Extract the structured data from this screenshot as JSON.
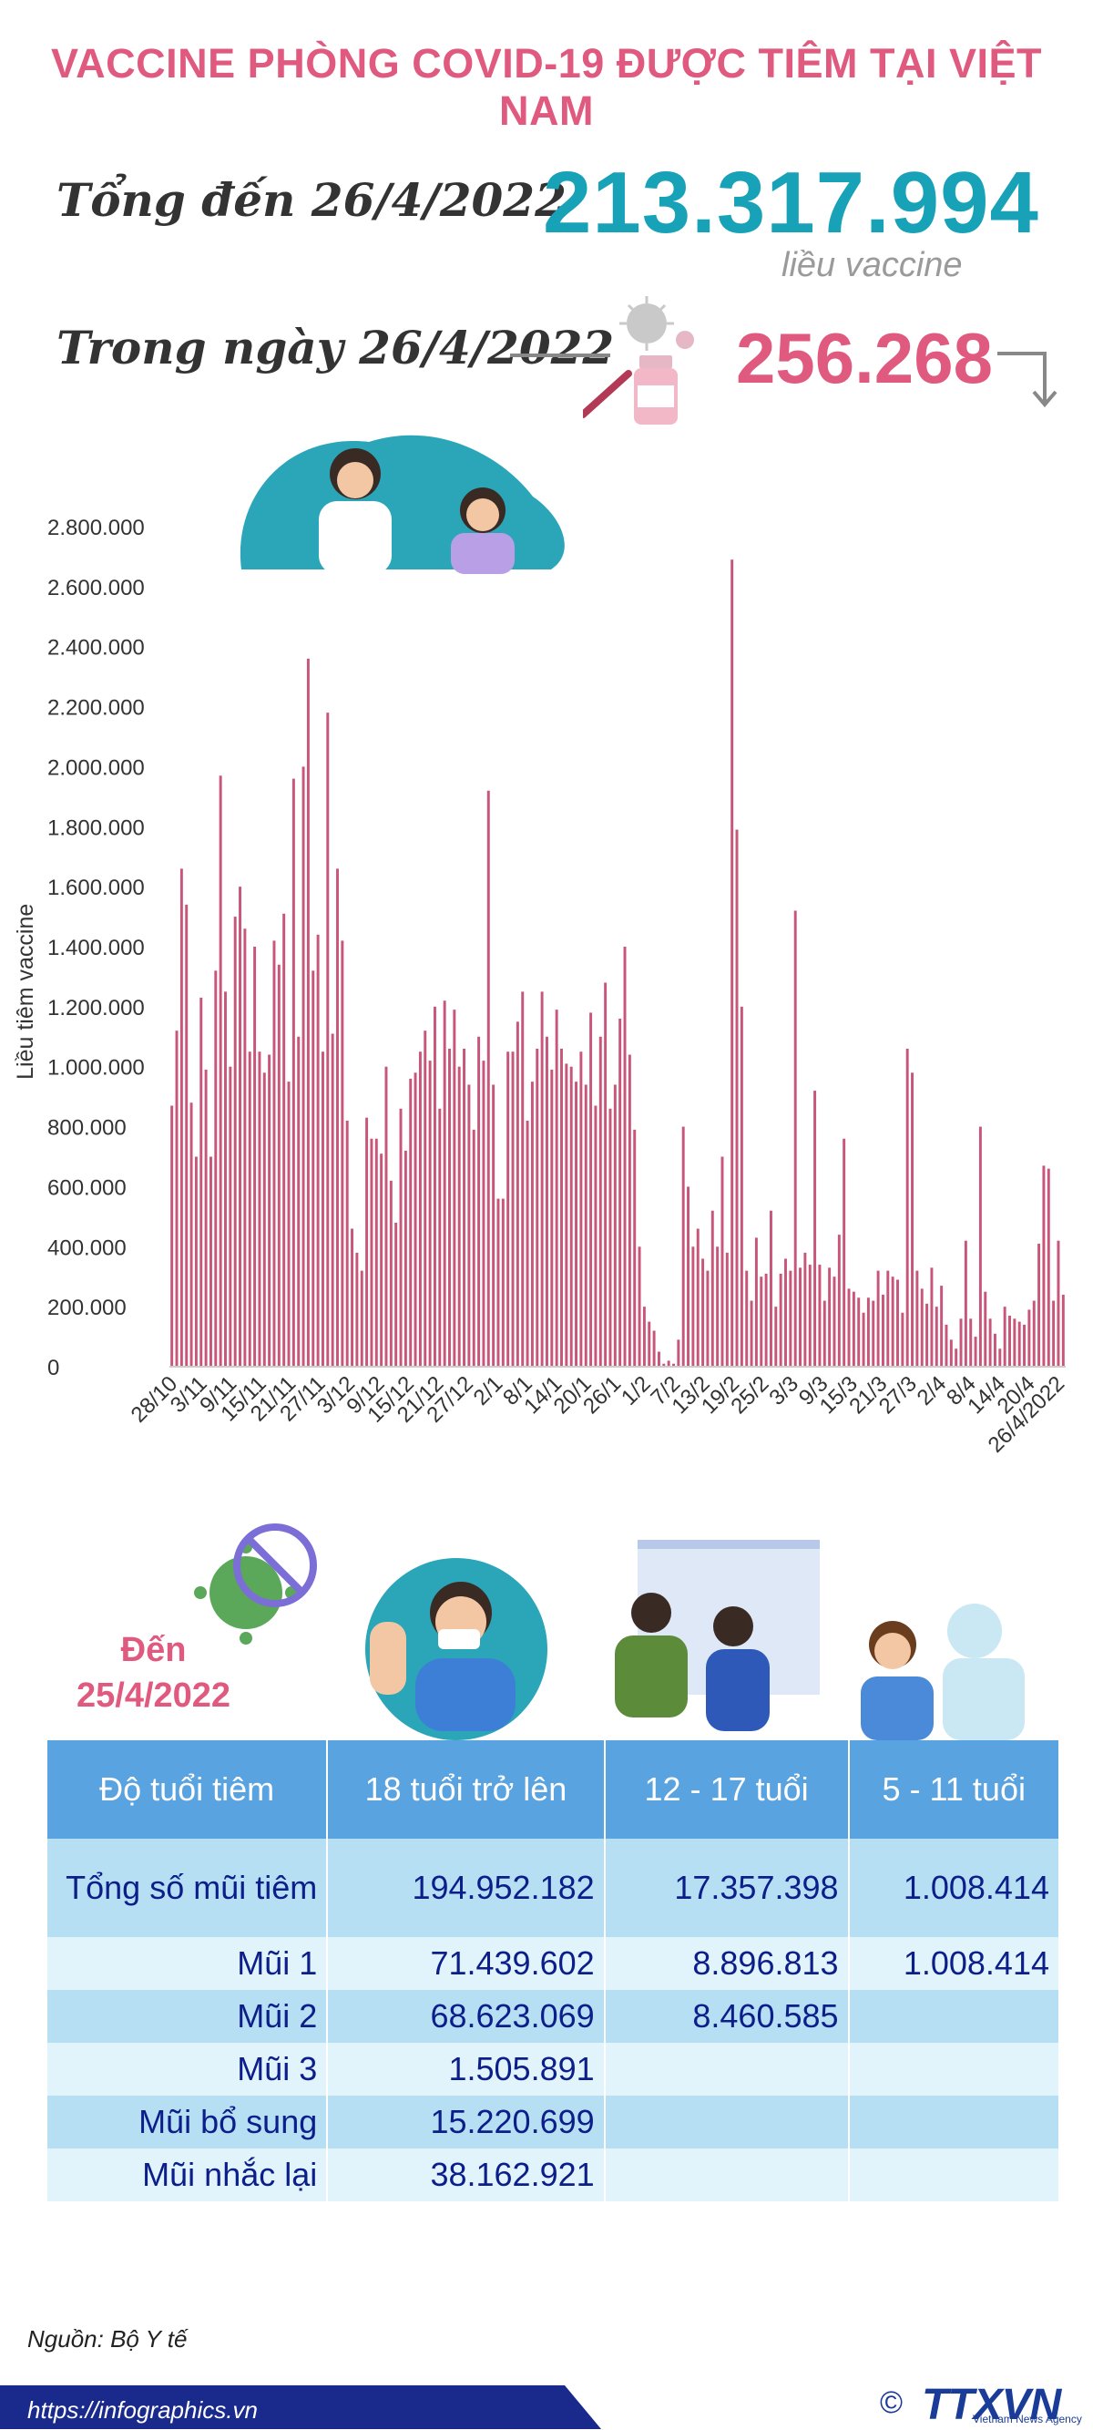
{
  "title": "VACCINE PHÒNG COVID-19 ĐƯỢC TIÊM TẠI VIỆT NAM",
  "summary": {
    "total_label": "Tổng đến 26/4/2022",
    "total_value": "213.317.994",
    "total_unit": "liều vaccine",
    "daily_label": "Trong ngày 26/4/2022",
    "daily_value": "256.268"
  },
  "chart_data": {
    "type": "bar",
    "ylabel": "Liều tiêm vaccine",
    "ylim": [
      0,
      2800000
    ],
    "yticks": [
      0,
      200000,
      400000,
      600000,
      800000,
      1000000,
      1200000,
      1400000,
      1600000,
      1800000,
      2000000,
      2200000,
      2400000,
      2600000,
      2800000
    ],
    "ytick_labels": [
      "0",
      "200.000",
      "400.000",
      "600.000",
      "800.000",
      "1.000.000",
      "1.200.000",
      "1.400.000",
      "1.600.000",
      "1.800.000",
      "2.000.000",
      "2.200.000",
      "2.400.000",
      "2.600.000",
      "2.800.000"
    ],
    "x_tick_labels": [
      "28/10",
      "3/11",
      "9/11",
      "15/11",
      "21/11",
      "27/11",
      "3/12",
      "9/12",
      "15/12",
      "21/12",
      "27/12",
      "2/1",
      "8/1",
      "14/1",
      "20/1",
      "26/1",
      "1/2",
      "7/2",
      "13/2",
      "19/2",
      "25/2",
      "3/3",
      "9/3",
      "15/3",
      "21/3",
      "27/3",
      "2/4",
      "8/4",
      "14/4",
      "20/4",
      "26/4/2022"
    ],
    "bar_color": "#c8557a",
    "values": [
      870000,
      1120000,
      1660000,
      1540000,
      880000,
      700000,
      1230000,
      990000,
      700000,
      1320000,
      1970000,
      1250000,
      1000000,
      1500000,
      1600000,
      1460000,
      1050000,
      1400000,
      1050000,
      980000,
      1040000,
      1420000,
      1340000,
      1510000,
      950000,
      1960000,
      1100000,
      2000000,
      2360000,
      1320000,
      1440000,
      1050000,
      2180000,
      1110000,
      1660000,
      1420000,
      820000,
      460000,
      380000,
      320000,
      830000,
      760000,
      760000,
      710000,
      1000000,
      620000,
      480000,
      860000,
      720000,
      960000,
      980000,
      1050000,
      1120000,
      1020000,
      1200000,
      860000,
      1220000,
      1060000,
      1190000,
      1000000,
      1060000,
      940000,
      790000,
      1100000,
      1020000,
      1920000,
      940000,
      560000,
      560000,
      1050000,
      1050000,
      1150000,
      1250000,
      820000,
      950000,
      1060000,
      1250000,
      1100000,
      990000,
      1190000,
      1060000,
      1010000,
      1000000,
      950000,
      1050000,
      940000,
      1180000,
      870000,
      1100000,
      1280000,
      860000,
      940000,
      1160000,
      1400000,
      1040000,
      790000,
      400000,
      200000,
      150000,
      120000,
      50000,
      10000,
      20000,
      10000,
      90000,
      800000,
      600000,
      400000,
      460000,
      360000,
      320000,
      520000,
      400000,
      700000,
      380000,
      2690000,
      1790000,
      1200000,
      320000,
      220000,
      430000,
      300000,
      310000,
      520000,
      200000,
      310000,
      360000,
      320000,
      1520000,
      330000,
      380000,
      340000,
      920000,
      340000,
      220000,
      330000,
      300000,
      440000,
      760000,
      260000,
      250000,
      230000,
      180000,
      230000,
      220000,
      320000,
      240000,
      320000,
      300000,
      290000,
      180000,
      1060000,
      980000,
      320000,
      260000,
      210000,
      330000,
      200000,
      270000,
      140000,
      90000,
      60000,
      160000,
      420000,
      160000,
      100000,
      800000,
      250000,
      160000,
      110000,
      60000,
      200000,
      170000,
      160000,
      150000,
      140000,
      190000,
      220000,
      410000,
      670000,
      660000,
      220000,
      420000,
      240000
    ],
    "annotation_arrow": "down"
  },
  "as_of": {
    "line1": "Đến",
    "line2": "25/4/2022"
  },
  "table": {
    "headers": [
      "Độ tuổi tiêm",
      "18 tuổi trở lên",
      "12 - 17 tuổi",
      "5 - 11 tuổi"
    ],
    "rows": [
      {
        "label": "Tổng số mũi tiêm",
        "c1": "194.952.182",
        "c2": "17.357.398",
        "c3": "1.008.414"
      },
      {
        "label": "Mũi 1",
        "c1": "71.439.602",
        "c2": "8.896.813",
        "c3": "1.008.414"
      },
      {
        "label": "Mũi 2",
        "c1": "68.623.069",
        "c2": "8.460.585",
        "c3": ""
      },
      {
        "label": "Mũi 3",
        "c1": "1.505.891",
        "c2": "",
        "c3": ""
      },
      {
        "label": "Mũi bổ sung",
        "c1": "15.220.699",
        "c2": "",
        "c3": ""
      },
      {
        "label": "Mũi nhắc lại",
        "c1": "38.162.921",
        "c2": "",
        "c3": ""
      }
    ]
  },
  "footer": {
    "source": "Nguồn: Bộ Y tế",
    "url": "https://infographics.vn",
    "copyright_symbol": "©",
    "logo": "TTXVN",
    "logo_sub": "Vietnam News Agency"
  },
  "colors": {
    "title": "#e0597f",
    "total": "#17a2b8",
    "daily": "#e0597f",
    "table_header": "#5aa3e1",
    "table_text": "#0b1e8a",
    "footer_band": "#1a2a8c"
  }
}
